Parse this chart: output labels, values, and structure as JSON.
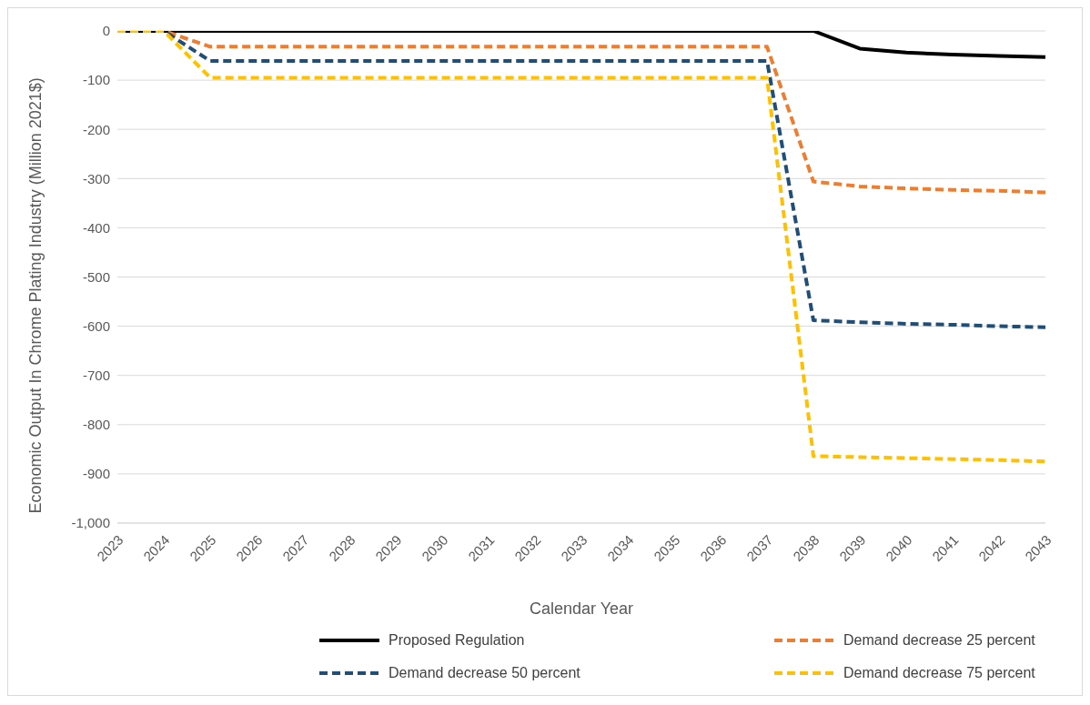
{
  "chart_data": {
    "type": "line",
    "xlabel": "Calendar Year",
    "ylabel": "Economic Output In Chrome Plating Industry (Million 2021$)",
    "categories": [
      "2023",
      "2024",
      "2025",
      "2026",
      "2027",
      "2028",
      "2029",
      "2030",
      "2031",
      "2032",
      "2033",
      "2034",
      "2035",
      "2036",
      "2037",
      "2038",
      "2039",
      "2040",
      "2041",
      "2042",
      "2043"
    ],
    "series": [
      {
        "name": "Proposed Regulation",
        "color": "#000000",
        "line_style": "solid",
        "values": [
          0,
          0,
          0,
          0,
          0,
          0,
          0,
          0,
          0,
          0,
          0,
          0,
          0,
          0,
          0,
          0,
          -36,
          -44,
          -48,
          -51,
          -53
        ]
      },
      {
        "name": "Demand decrease 25 percent",
        "color": "#ed7d31",
        "line_style": "dashed",
        "values": [
          0,
          0,
          -32,
          -32,
          -32,
          -32,
          -32,
          -32,
          -32,
          -32,
          -32,
          -32,
          -32,
          -32,
          -32,
          -306,
          -316,
          -320,
          -323,
          -325,
          -328
        ]
      },
      {
        "name": "Demand decrease 50 percent",
        "color": "#1f4e79",
        "line_style": "dashed",
        "values": [
          0,
          0,
          -61,
          -61,
          -61,
          -61,
          -61,
          -61,
          -61,
          -61,
          -61,
          -61,
          -61,
          -61,
          -61,
          -588,
          -592,
          -595,
          -597,
          -600,
          -602
        ]
      },
      {
        "name": "Demand decrease 75 percent",
        "color": "#ffc000",
        "line_style": "dashed",
        "values": [
          0,
          0,
          -95,
          -95,
          -95,
          -95,
          -95,
          -95,
          -95,
          -95,
          -95,
          -95,
          -95,
          -95,
          -95,
          -864,
          -866,
          -868,
          -870,
          -872,
          -875
        ]
      }
    ],
    "ylim": [
      -1000,
      0
    ],
    "yticks": [
      {
        "value": -1000,
        "label": "-1,000"
      },
      -900,
      -800,
      -700,
      -600,
      -500,
      -400,
      -300,
      -200,
      -100,
      0
    ],
    "grid": "y",
    "legend": "bottom",
    "marker": "none"
  }
}
